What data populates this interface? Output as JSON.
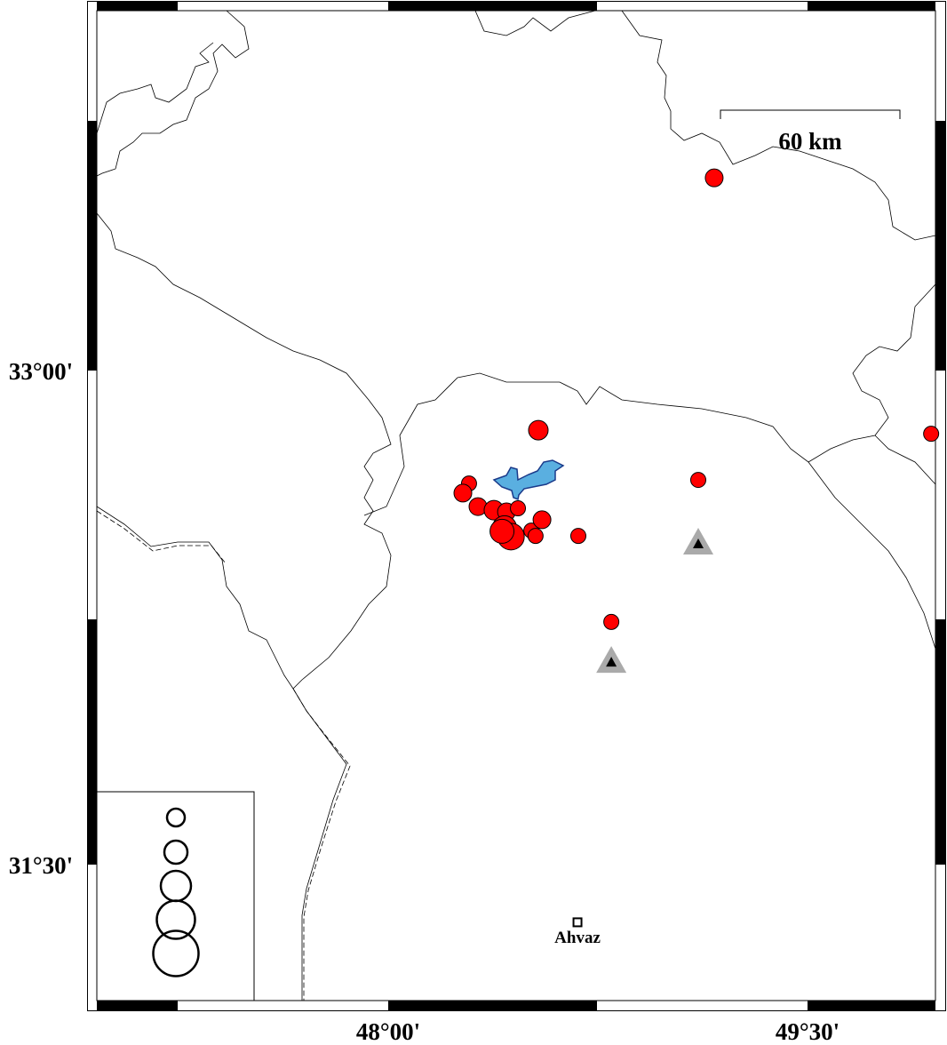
{
  "map": {
    "lon_ticks": [
      {
        "value": 48.0,
        "label": "48°00'"
      },
      {
        "value": 49.5,
        "label": "49°30'"
      }
    ],
    "lat_ticks": [
      {
        "value": 33.0,
        "label": "33°00'"
      },
      {
        "value": 31.5,
        "label": "31°30'"
      }
    ],
    "scale_bar": {
      "label": "60 km"
    },
    "city": {
      "name": "Ahvaz",
      "lon": 48.677,
      "lat": 31.325
    },
    "colors": {
      "event": "#ff0000",
      "lake": "#5aafe0",
      "lake_outline": "#1a3a8a",
      "station": "#aaaaaa",
      "border": "#000000"
    },
    "events": [
      {
        "lon": 49.166,
        "lat": 33.585,
        "size": 2
      },
      {
        "lon": 48.537,
        "lat": 32.819,
        "size": 3
      },
      {
        "lon": 49.109,
        "lat": 32.668,
        "size": 1
      },
      {
        "lon": 49.942,
        "lat": 32.808,
        "size": 1
      },
      {
        "lon": 48.289,
        "lat": 32.657,
        "size": 1
      },
      {
        "lon": 48.267,
        "lat": 32.628,
        "size": 2
      },
      {
        "lon": 48.321,
        "lat": 32.587,
        "size": 2
      },
      {
        "lon": 48.378,
        "lat": 32.576,
        "size": 3
      },
      {
        "lon": 48.423,
        "lat": 32.571,
        "size": 2
      },
      {
        "lon": 48.464,
        "lat": 32.582,
        "size": 1
      },
      {
        "lon": 48.416,
        "lat": 32.523,
        "size": 4
      },
      {
        "lon": 48.439,
        "lat": 32.496,
        "size": 5
      },
      {
        "lon": 48.407,
        "lat": 32.512,
        "size": 4
      },
      {
        "lon": 48.512,
        "lat": 32.514,
        "size": 1
      },
      {
        "lon": 48.55,
        "lat": 32.547,
        "size": 2
      },
      {
        "lon": 48.527,
        "lat": 32.498,
        "size": 1
      },
      {
        "lon": 48.68,
        "lat": 32.498,
        "size": 1
      },
      {
        "lon": 48.798,
        "lat": 32.237,
        "size": 1
      }
    ],
    "stations": [
      {
        "lon": 49.109,
        "lat": 32.474
      },
      {
        "lon": 48.798,
        "lat": 32.115
      }
    ],
    "legend_sizes": [
      1,
      2,
      3,
      4,
      5
    ]
  }
}
